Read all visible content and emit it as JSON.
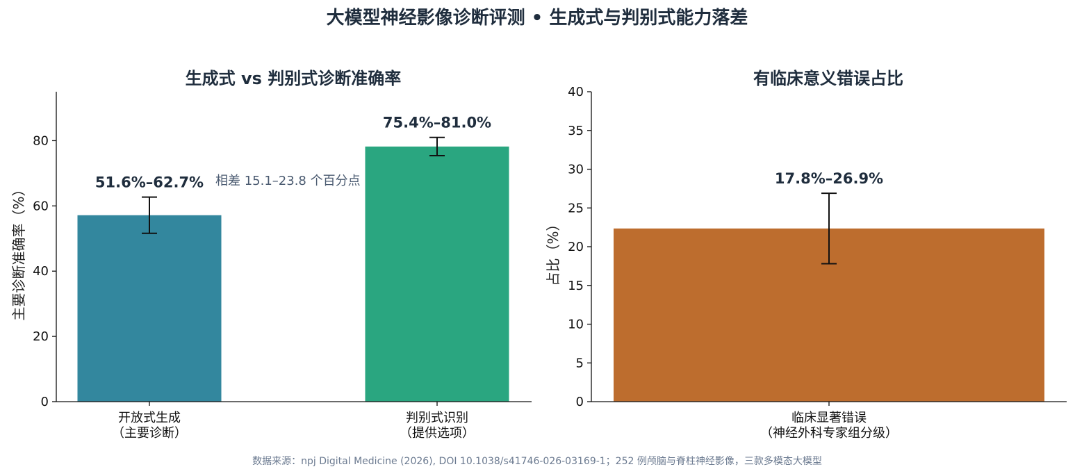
{
  "figure": {
    "title": "大模型神经影像诊断评测 • 生成式与判别式能力落差",
    "source": "数据来源：npj Digital Medicine (2026), DOI 10.1038/s41746-026-03169-1；252 例颅脑与脊柱神经影像，三款多模态大模型"
  },
  "colors": {
    "bar_open": "#33879e",
    "bar_disc": "#2aa680",
    "bar_error": "#bd6d2e",
    "axis": "#111111",
    "errbar": "#111111"
  },
  "chart_data": [
    {
      "type": "bar",
      "title": "生成式 vs 判别式诊断准确率",
      "ylabel": "主要诊断准确率（%）",
      "ylim": [
        0,
        95
      ],
      "yticks": [
        0,
        20,
        40,
        60,
        80
      ],
      "grid": false,
      "categories": [
        [
          "开放式生成",
          "（主要诊断）"
        ],
        [
          "判别式识别",
          "（提供选项）"
        ]
      ],
      "values": [
        57.15,
        78.2
      ],
      "err_low": [
        51.6,
        75.4
      ],
      "err_high": [
        62.7,
        81.0
      ],
      "value_labels": [
        "51.6%–62.7%",
        "75.4%–81.0%"
      ],
      "annotation": "相差 15.1–23.8 个百分点"
    },
    {
      "type": "bar",
      "title": "有临床意义错误占比",
      "ylabel": "占比（%）",
      "ylim": [
        0,
        40
      ],
      "yticks": [
        0,
        5,
        10,
        15,
        20,
        25,
        30,
        35,
        40
      ],
      "grid": false,
      "categories": [
        [
          "临床显著错误",
          "（神经外科专家组分级）"
        ]
      ],
      "values": [
        22.35
      ],
      "err_low": [
        17.8
      ],
      "err_high": [
        26.9
      ],
      "value_labels": [
        "17.8%–26.9%"
      ]
    }
  ]
}
